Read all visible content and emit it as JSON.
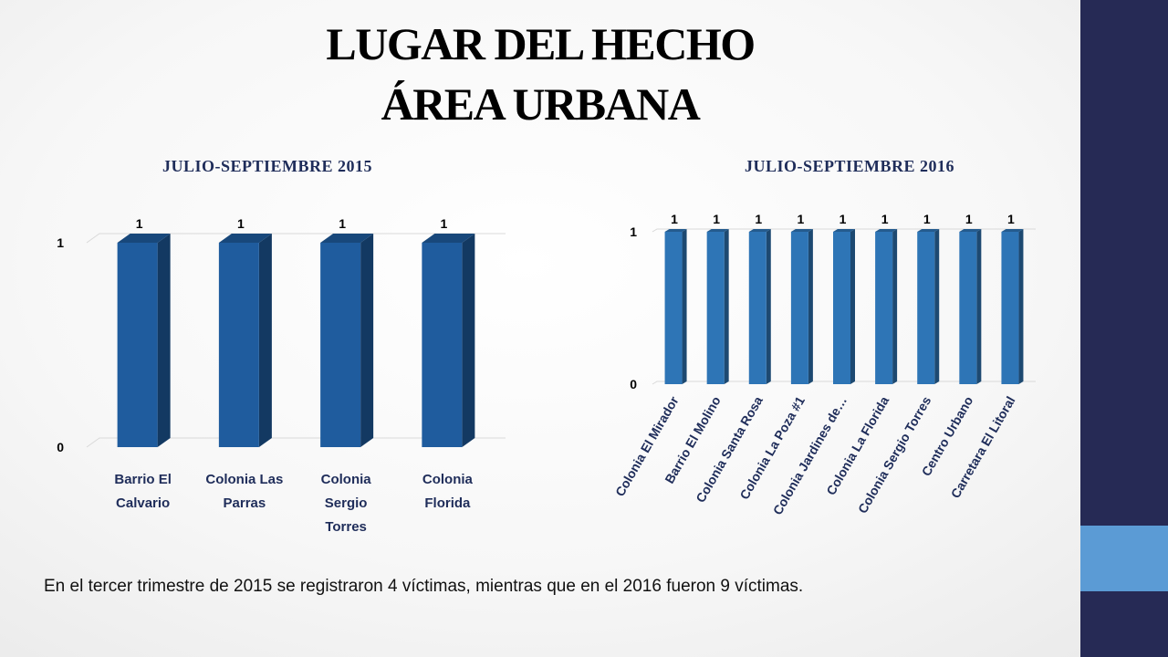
{
  "title": {
    "line1": "LUGAR DEL HECHO",
    "line2": "ÁREA URBANA"
  },
  "colors": {
    "side_band": "#262a55",
    "side_accent": "#5b9bd5",
    "bar_2015": "#1f5c9e",
    "bar_2016": "#2e75b6"
  },
  "chart_data": [
    {
      "type": "bar",
      "title": "JULIO-SEPTIEMBRE 2015",
      "categories": [
        "Barrio El Calvario",
        "Colonia Las Parras",
        "Colonia Sergio Torres",
        "Colonia Florida"
      ],
      "values": [
        1,
        1,
        1,
        1
      ],
      "data_labels": [
        "1",
        "1",
        "1",
        "1"
      ],
      "ylim": [
        0,
        1
      ],
      "yticks": [
        "0",
        "1"
      ],
      "grid": true,
      "style": "3d"
    },
    {
      "type": "bar",
      "title": "JULIO-SEPTIEMBRE 2016",
      "categories": [
        "Colonia El Mirador",
        "Barrio El Molino",
        "Colonia Santa Rosa",
        "Colonia La Poza #1",
        "Colonia Jardines de…",
        "Colonia La Florida",
        "Colonia Sergio Torres",
        "Centro Urbano",
        "Carretara El Litoral"
      ],
      "values": [
        1,
        1,
        1,
        1,
        1,
        1,
        1,
        1,
        1
      ],
      "data_labels": [
        "1",
        "1",
        "1",
        "1",
        "1",
        "1",
        "1",
        "1",
        "1"
      ],
      "ylim": [
        0,
        1
      ],
      "yticks": [
        "0",
        "1"
      ],
      "grid": true,
      "style": "3d"
    }
  ],
  "summary": "En el tercer trimestre de 2015 se registraron 4 víctimas, mientras que en el 2016 fueron 9 víctimas."
}
